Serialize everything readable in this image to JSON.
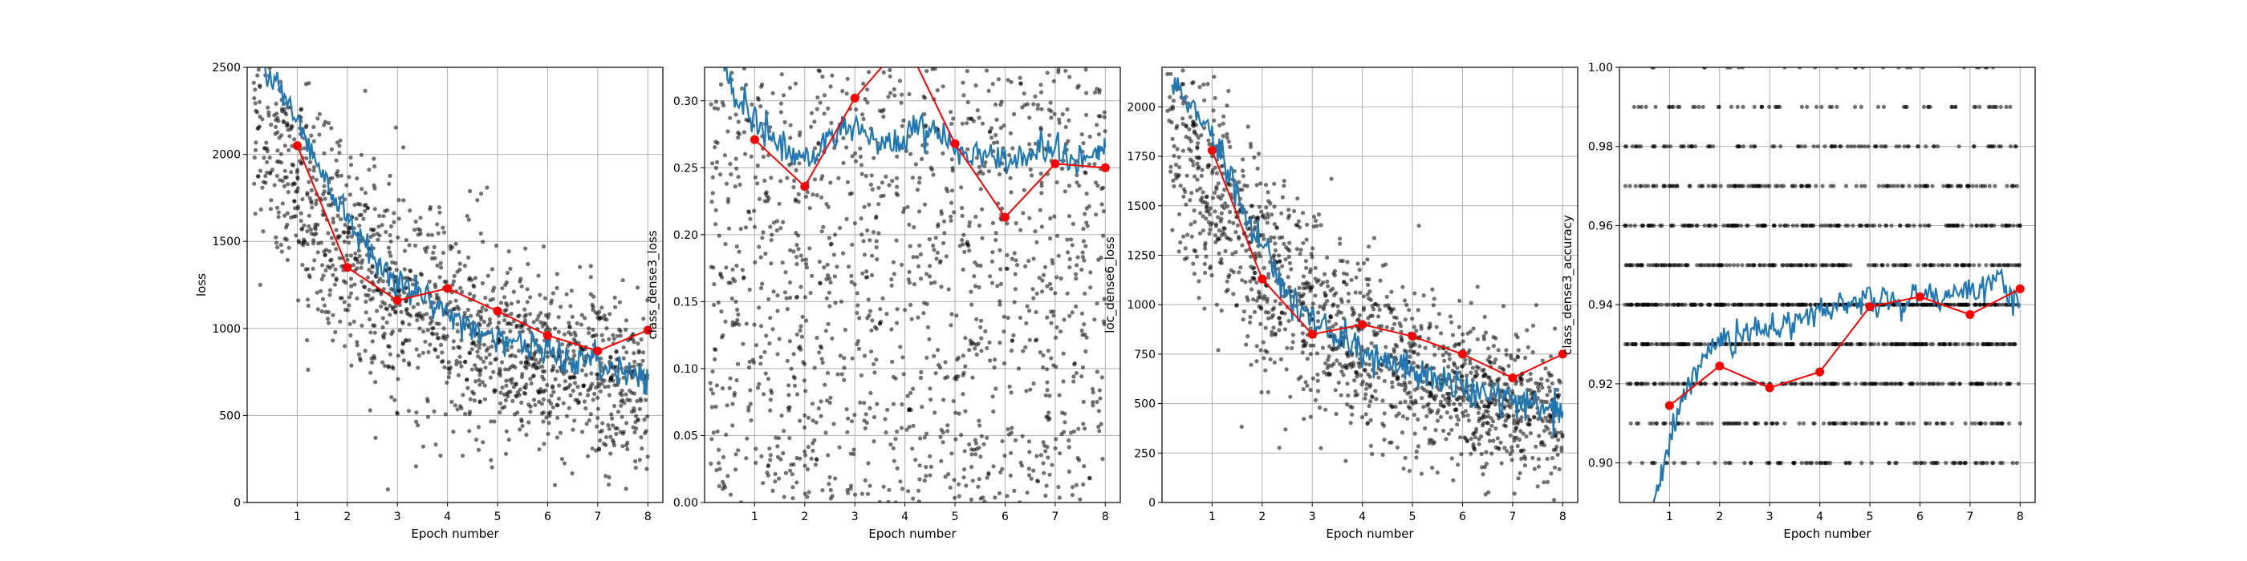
{
  "colors": {
    "scatter": "#000000",
    "smooth": "#1f77b4",
    "epoch": "#ff0000",
    "grid": "#b0b0b0"
  },
  "chart_data": [
    {
      "type": "line",
      "xlabel": "Epoch number",
      "ylabel": "loss",
      "xlim": [
        0,
        8.3
      ],
      "ylim": [
        0,
        2500
      ],
      "xticks": [
        1,
        2,
        3,
        4,
        5,
        6,
        7,
        8
      ],
      "yticks": [
        0,
        500,
        1000,
        1500,
        2000,
        2500
      ],
      "grid": true,
      "epoch_series": {
        "x": [
          1,
          2,
          3,
          4,
          5,
          6,
          7,
          8
        ],
        "y": [
          2050,
          1350,
          1160,
          1230,
          1100,
          960,
          870,
          990
        ]
      },
      "smoothed_series": {
        "x": [
          0.2,
          0.6,
          1.0,
          1.4,
          1.8,
          2.2,
          2.6,
          3.0,
          3.4,
          3.8,
          4.2,
          4.6,
          5.0,
          5.4,
          5.8,
          6.2,
          6.6,
          7.0,
          7.4,
          7.8,
          8.0
        ],
        "y": [
          2550,
          2400,
          2200,
          1950,
          1750,
          1550,
          1400,
          1280,
          1200,
          1120,
          1050,
          1000,
          950,
          920,
          880,
          850,
          820,
          790,
          770,
          740,
          720
        ]
      },
      "scatter_band": {
        "start": [
          0.1,
          2300
        ],
        "end": [
          8.0,
          680
        ],
        "decay": 2.6,
        "spread_start": 350,
        "spread_end": 230,
        "count": 1500
      }
    },
    {
      "type": "line",
      "xlabel": "Epoch number",
      "ylabel": "class_dense3_loss",
      "xlim": [
        0,
        8.3
      ],
      "ylim": [
        0,
        0.325
      ],
      "xticks": [
        1,
        2,
        3,
        4,
        5,
        6,
        7,
        8
      ],
      "yticks": [
        0.0,
        0.05,
        0.1,
        0.15,
        0.2,
        0.25,
        0.3
      ],
      "ytick_format": 2,
      "grid": true,
      "epoch_series": {
        "x": [
          1,
          2,
          3,
          4,
          5,
          6,
          7,
          8
        ],
        "y": [
          0.271,
          0.236,
          0.302,
          0.345,
          0.268,
          0.213,
          0.253,
          0.25
        ]
      },
      "smoothed_series": {
        "x": [
          0.2,
          0.6,
          1.0,
          1.4,
          1.8,
          2.2,
          2.6,
          3.0,
          3.4,
          3.8,
          4.2,
          4.6,
          5.0,
          5.4,
          5.8,
          6.2,
          6.6,
          7.0,
          7.4,
          7.8,
          8.0
        ],
        "y": [
          0.33,
          0.305,
          0.285,
          0.27,
          0.26,
          0.26,
          0.275,
          0.285,
          0.27,
          0.265,
          0.28,
          0.275,
          0.268,
          0.262,
          0.258,
          0.255,
          0.262,
          0.268,
          0.255,
          0.26,
          0.265
        ]
      },
      "scatter_band": {
        "start": [
          0.1,
          0.17
        ],
        "end": [
          8.0,
          0.17
        ],
        "decay": 1,
        "spread_start": 0.16,
        "spread_end": 0.16,
        "count": 1300
      }
    },
    {
      "type": "line",
      "xlabel": "Epoch number",
      "ylabel": "loc_dense6_loss",
      "xlim": [
        0,
        8.3
      ],
      "ylim": [
        0,
        2200
      ],
      "xticks": [
        1,
        2,
        3,
        4,
        5,
        6,
        7,
        8
      ],
      "yticks": [
        0,
        250,
        500,
        750,
        1000,
        1250,
        1500,
        1750,
        2000
      ],
      "grid": true,
      "epoch_series": {
        "x": [
          1,
          2,
          3,
          4,
          5,
          6,
          7,
          8
        ],
        "y": [
          1780,
          1130,
          850,
          900,
          840,
          750,
          630,
          750
        ]
      },
      "smoothed_series": {
        "x": [
          0.2,
          0.6,
          1.0,
          1.4,
          1.8,
          2.2,
          2.6,
          3.0,
          3.4,
          3.8,
          4.2,
          4.6,
          5.0,
          5.4,
          5.8,
          6.2,
          6.6,
          7.0,
          7.4,
          7.8,
          8.0
        ],
        "y": [
          2150,
          2000,
          1850,
          1600,
          1380,
          1200,
          1050,
          930,
          850,
          790,
          740,
          700,
          660,
          630,
          600,
          570,
          545,
          520,
          500,
          480,
          460
        ]
      },
      "scatter_band": {
        "start": [
          0.1,
          1900
        ],
        "end": [
          8.0,
          420
        ],
        "decay": 2.3,
        "spread_start": 300,
        "spread_end": 160,
        "count": 1500
      }
    },
    {
      "type": "line",
      "xlabel": "Epoch number",
      "ylabel": "class_dense3_accuracy",
      "xlim": [
        0,
        8.3
      ],
      "ylim": [
        0.89,
        1.0
      ],
      "xticks": [
        1,
        2,
        3,
        4,
        5,
        6,
        7,
        8
      ],
      "yticks": [
        0.9,
        0.92,
        0.94,
        0.96,
        0.98,
        1.0
      ],
      "ytick_format": 2,
      "grid": true,
      "epoch_series": {
        "x": [
          1,
          2,
          3,
          4,
          5,
          6,
          7,
          8
        ],
        "y": [
          0.9145,
          0.9245,
          0.919,
          0.923,
          0.9395,
          0.942,
          0.9375,
          0.944
        ]
      },
      "smoothed_series": {
        "x": [
          0.6,
          0.9,
          1.2,
          1.6,
          2.0,
          2.4,
          2.8,
          3.2,
          3.6,
          4.0,
          4.4,
          4.8,
          5.2,
          5.6,
          6.0,
          6.4,
          6.8,
          7.2,
          7.6,
          8.0
        ],
        "y": [
          0.885,
          0.9,
          0.915,
          0.925,
          0.93,
          0.932,
          0.935,
          0.934,
          0.936,
          0.938,
          0.94,
          0.941,
          0.942,
          0.94,
          0.943,
          0.941,
          0.945,
          0.943,
          0.946,
          0.94
        ]
      },
      "scatter_levels": [
        0.9,
        0.91,
        0.92,
        0.93,
        0.94,
        0.95,
        0.96,
        0.97,
        0.98,
        0.99,
        1.0
      ],
      "scatter_level_weights": [
        3,
        3,
        5,
        8,
        9,
        6,
        5,
        4,
        3,
        2,
        1
      ],
      "count": 1500
    }
  ]
}
